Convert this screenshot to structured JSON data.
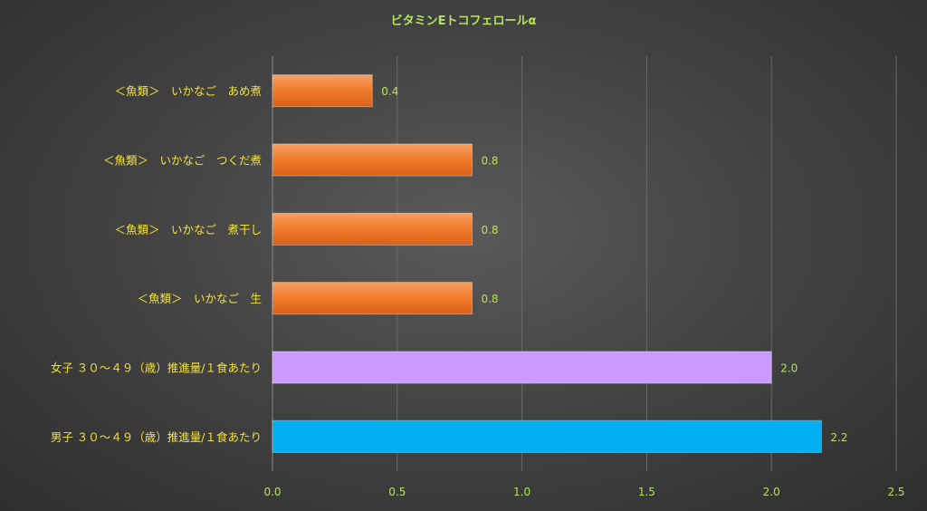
{
  "chart_data": {
    "type": "bar",
    "orientation": "horizontal",
    "title": "ビタミンEトコフェロールα",
    "categories": [
      "＜魚類＞　いかなご　あめ煮",
      "＜魚類＞　いかなご　つくだ煮",
      "＜魚類＞　いかなご　煮干し",
      "＜魚類＞　いかなご　生",
      "女子 ３０～４９（歳）推進量/１食あたり",
      "男子 ３０～４９（歳）推進量/１食あたり"
    ],
    "values": [
      0.4,
      0.8,
      0.8,
      0.8,
      2.0,
      2.2
    ],
    "value_labels": [
      "0.4",
      "0.8",
      "0.8",
      "0.8",
      "2.0",
      "2.2"
    ],
    "bar_colors": [
      "#f07a2a",
      "#f07a2a",
      "#f07a2a",
      "#f07a2a",
      "#cc99ff",
      "#00b0f0"
    ],
    "xlim": [
      0,
      2.5
    ],
    "x_ticks": [
      "0.0",
      "0.5",
      "1.0",
      "1.5",
      "2.0",
      "2.5"
    ],
    "grid": true,
    "legend": "none"
  }
}
